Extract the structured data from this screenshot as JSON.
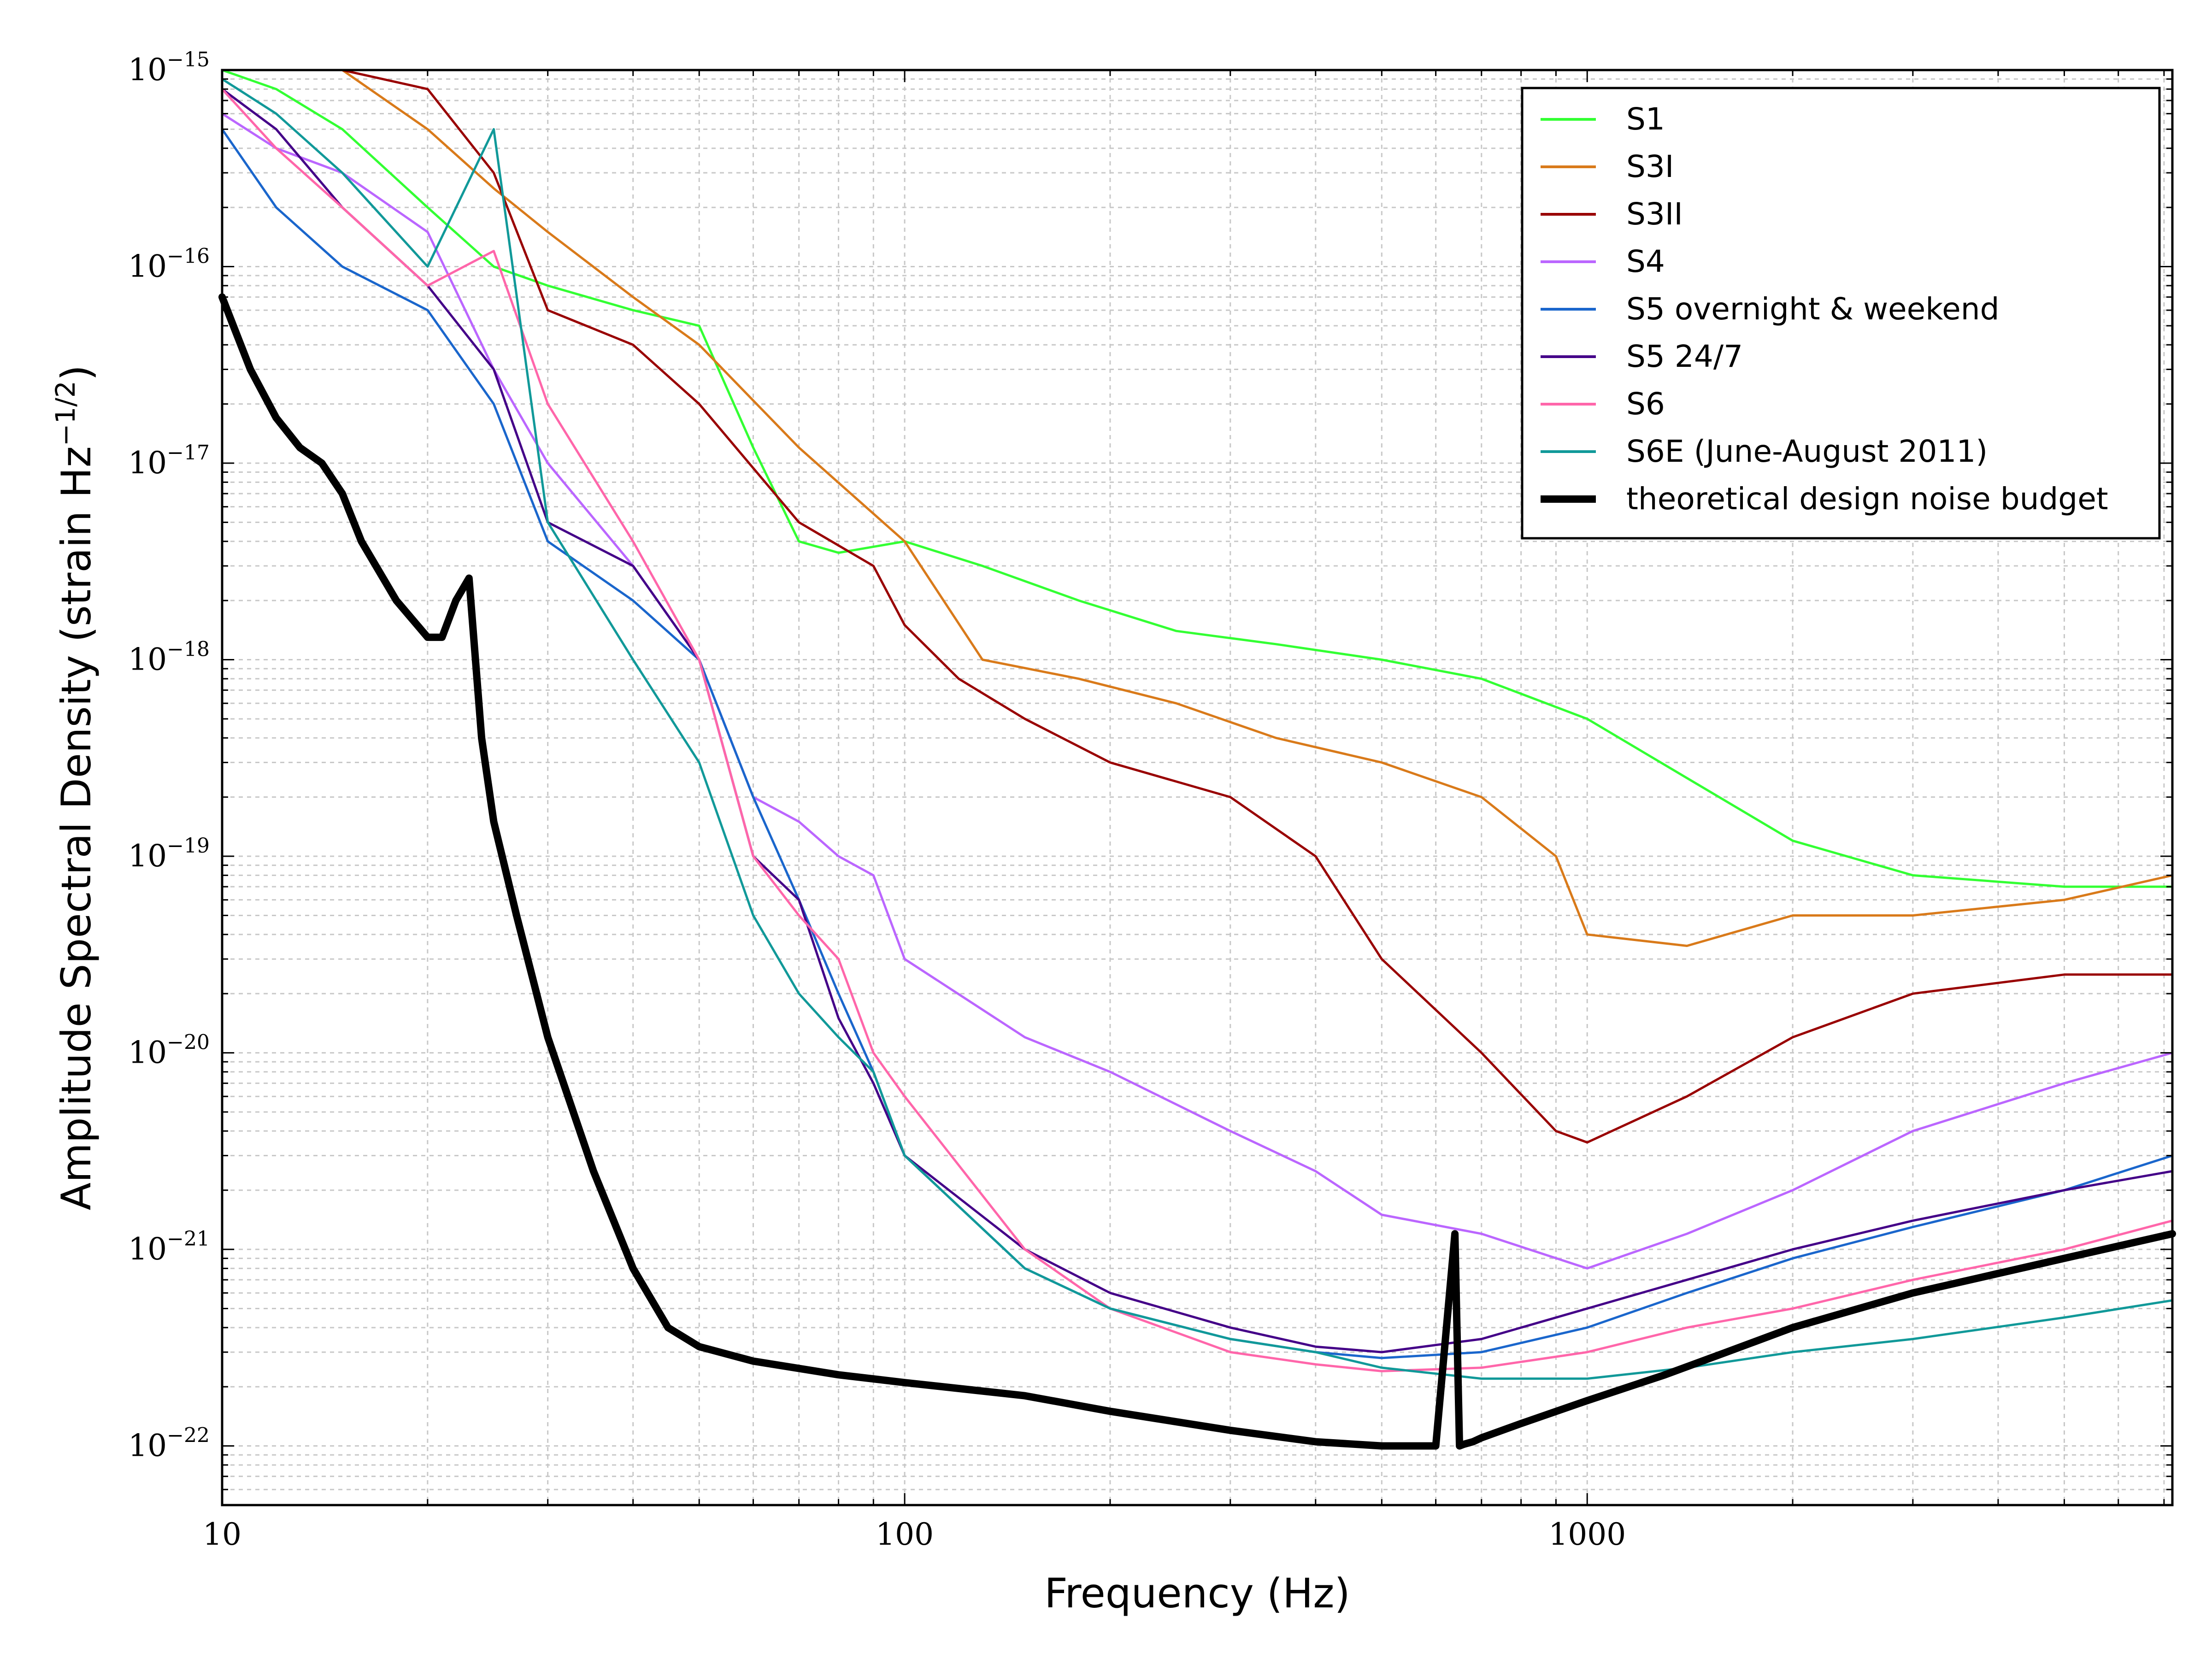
{
  "chart_data": {
    "type": "line",
    "title": "",
    "xlabel": "Frequency (Hz)",
    "ylabel": "Amplitude Spectral Density (strain Hz",
    "ylabel_sup": "−1/2",
    "ylabel_end": ")",
    "xscale": "log",
    "yscale": "log",
    "xlim": [
      10,
      7200
    ],
    "ylim": [
      5e-23,
      1e-15
    ],
    "grid": true,
    "legend_position": "top-right",
    "x_ticks": [
      {
        "value": 10,
        "label": "10"
      },
      {
        "value": 100,
        "label": "100"
      },
      {
        "value": 1000,
        "label": "1000"
      }
    ],
    "y_ticks": [
      {
        "value": 1e-15,
        "base": "10",
        "exp": "−15"
      },
      {
        "value": 1e-16,
        "base": "10",
        "exp": "−16"
      },
      {
        "value": 1e-17,
        "base": "10",
        "exp": "−17"
      },
      {
        "value": 1e-18,
        "base": "10",
        "exp": "−18"
      },
      {
        "value": 1e-19,
        "base": "10",
        "exp": "−19"
      },
      {
        "value": 1e-20,
        "base": "10",
        "exp": "−20"
      },
      {
        "value": 1e-21,
        "base": "10",
        "exp": "−21"
      },
      {
        "value": 1e-22,
        "base": "10",
        "exp": "−22"
      }
    ],
    "series": [
      {
        "name": "S1",
        "color": "#33ff33",
        "x": [
          10,
          12,
          15,
          20,
          25,
          30,
          40,
          50,
          60,
          70,
          80,
          100,
          130,
          180,
          250,
          350,
          500,
          700,
          1000,
          1400,
          2000,
          3000,
          5000,
          7200
        ],
        "y": [
          1e-15,
          8e-16,
          5e-16,
          2e-16,
          1e-16,
          8e-17,
          6e-17,
          5e-17,
          1.2e-17,
          4e-18,
          3.5e-18,
          4e-18,
          3e-18,
          2e-18,
          1.4e-18,
          1.2e-18,
          1e-18,
          8e-19,
          5e-19,
          2.5e-19,
          1.2e-19,
          8e-20,
          7e-20,
          7e-20
        ]
      },
      {
        "name": "S3I",
        "color": "#d97a1a",
        "x": [
          10,
          12,
          15,
          20,
          25,
          30,
          40,
          50,
          70,
          100,
          130,
          180,
          250,
          350,
          500,
          700,
          900,
          1000,
          1400,
          2000,
          3000,
          5000,
          7200
        ],
        "y": [
          1.5e-15,
          1.2e-15,
          1e-15,
          5e-16,
          2.5e-16,
          1.5e-16,
          7e-17,
          4e-17,
          1.2e-17,
          4e-18,
          1e-18,
          8e-19,
          6e-19,
          4e-19,
          3e-19,
          2e-19,
          1e-19,
          4e-20,
          3.5e-20,
          5e-20,
          5e-20,
          6e-20,
          8e-20
        ]
      },
      {
        "name": "S3II",
        "color": "#990000",
        "x": [
          10,
          12,
          15,
          20,
          25,
          30,
          40,
          50,
          70,
          90,
          100,
          120,
          150,
          200,
          300,
          400,
          500,
          700,
          900,
          1000,
          1400,
          2000,
          3000,
          5000,
          7200
        ],
        "y": [
          1.5e-15,
          1.3e-15,
          1e-15,
          8e-16,
          3e-16,
          6e-17,
          4e-17,
          2e-17,
          5e-18,
          3e-18,
          1.5e-18,
          8e-19,
          5e-19,
          3e-19,
          2e-19,
          1e-19,
          3e-20,
          1e-20,
          4e-21,
          3.5e-21,
          6e-21,
          1.2e-20,
          2e-20,
          2.5e-20,
          2.5e-20
        ]
      },
      {
        "name": "S4",
        "color": "#bb66ff",
        "x": [
          10,
          12,
          15,
          20,
          25,
          30,
          40,
          50,
          60,
          70,
          80,
          90,
          100,
          150,
          200,
          300,
          400,
          500,
          700,
          1000,
          1400,
          2000,
          3000,
          5000,
          7200
        ],
        "y": [
          6e-16,
          4e-16,
          3e-16,
          1.5e-16,
          3e-17,
          1e-17,
          3e-18,
          1e-18,
          2e-19,
          1.5e-19,
          1e-19,
          8e-20,
          3e-20,
          1.2e-20,
          8e-21,
          4e-21,
          2.5e-21,
          1.5e-21,
          1.2e-21,
          8e-22,
          1.2e-21,
          2e-21,
          4e-21,
          7e-21,
          1e-20
        ]
      },
      {
        "name": "S5 overnight & weekend",
        "color": "#1a66cc",
        "x": [
          10,
          12,
          15,
          20,
          25,
          30,
          40,
          50,
          60,
          70,
          80,
          90,
          100,
          150,
          200,
          300,
          400,
          500,
          700,
          1000,
          1400,
          2000,
          3000,
          5000,
          7200
        ],
        "y": [
          5e-16,
          2e-16,
          1e-16,
          6e-17,
          2e-17,
          4e-18,
          2e-18,
          1e-18,
          2e-19,
          6e-20,
          2e-20,
          8e-21,
          3e-21,
          8e-22,
          5e-22,
          3.5e-22,
          3e-22,
          2.8e-22,
          3e-22,
          4e-22,
          6e-22,
          9e-22,
          1.3e-21,
          2e-21,
          3e-21
        ]
      },
      {
        "name": "S5 24/7",
        "color": "#440088",
        "x": [
          10,
          12,
          15,
          20,
          25,
          30,
          40,
          50,
          60,
          70,
          80,
          90,
          100,
          150,
          200,
          300,
          400,
          500,
          700,
          1000,
          1400,
          2000,
          3000,
          5000,
          7200
        ],
        "y": [
          8e-16,
          5e-16,
          2e-16,
          8e-17,
          3e-17,
          5e-18,
          3e-18,
          1e-18,
          1e-19,
          6e-20,
          1.5e-20,
          7e-21,
          3e-21,
          1e-21,
          6e-22,
          4e-22,
          3.2e-22,
          3e-22,
          3.5e-22,
          5e-22,
          7e-22,
          1e-21,
          1.4e-21,
          2e-21,
          2.5e-21
        ]
      },
      {
        "name": "S6",
        "color": "#ff66aa",
        "x": [
          10,
          12,
          15,
          20,
          25,
          30,
          40,
          50,
          60,
          70,
          80,
          90,
          100,
          150,
          200,
          300,
          400,
          500,
          700,
          1000,
          1400,
          2000,
          3000,
          5000,
          7200
        ],
        "y": [
          8e-16,
          4e-16,
          2e-16,
          8e-17,
          1.2e-16,
          2e-17,
          4e-18,
          1e-18,
          1e-19,
          5e-20,
          3e-20,
          1e-20,
          6e-21,
          1e-21,
          5e-22,
          3e-22,
          2.6e-22,
          2.4e-22,
          2.5e-22,
          3e-22,
          4e-22,
          5e-22,
          7e-22,
          1e-21,
          1.4e-21
        ]
      },
      {
        "name": "S6E (June-August 2011)",
        "color": "#119999",
        "x": [
          10,
          12,
          15,
          20,
          25,
          30,
          40,
          50,
          60,
          70,
          80,
          90,
          100,
          150,
          200,
          300,
          400,
          500,
          700,
          1000,
          1400,
          2000,
          3000,
          5000,
          7200
        ],
        "y": [
          9e-16,
          6e-16,
          3e-16,
          1e-16,
          5e-16,
          5e-18,
          1e-18,
          3e-19,
          5e-20,
          2e-20,
          1.2e-20,
          8e-21,
          3e-21,
          8e-22,
          5e-22,
          3.5e-22,
          3e-22,
          2.5e-22,
          2.2e-22,
          2.2e-22,
          2.5e-22,
          3e-22,
          3.5e-22,
          4.5e-22,
          5.5e-22
        ]
      },
      {
        "name": "theoretical design noise budget",
        "color": "#000000",
        "x": [
          10,
          11,
          12,
          13,
          14,
          15,
          16,
          18,
          20,
          21,
          22,
          23,
          24,
          25,
          27,
          30,
          35,
          40,
          45,
          50,
          60,
          80,
          100,
          150,
          200,
          300,
          400,
          500,
          600,
          640,
          650,
          660,
          680,
          700,
          800,
          1000,
          1300,
          1600,
          2000,
          3000,
          5000,
          7200
        ],
        "y": [
          7e-17,
          3e-17,
          1.7e-17,
          1.2e-17,
          1e-17,
          7e-18,
          4e-18,
          2e-18,
          1.3e-18,
          1.3e-18,
          2e-18,
          2.6e-18,
          4e-19,
          1.5e-19,
          5e-20,
          1.2e-20,
          2.5e-21,
          8e-22,
          4e-22,
          3.2e-22,
          2.7e-22,
          2.3e-22,
          2.1e-22,
          1.8e-22,
          1.5e-22,
          1.2e-22,
          1.05e-22,
          1e-22,
          1e-22,
          1.2e-21,
          1e-22,
          1.02e-22,
          1.05e-22,
          1.1e-22,
          1.3e-22,
          1.7e-22,
          2.3e-22,
          3e-22,
          4e-22,
          6e-22,
          9e-22,
          1.2e-21
        ]
      }
    ]
  }
}
